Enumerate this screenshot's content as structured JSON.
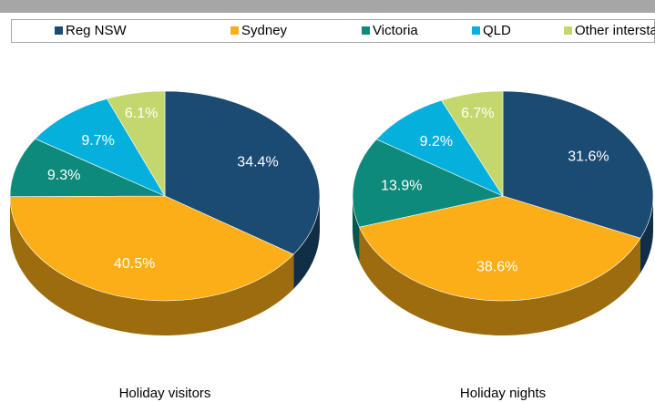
{
  "chart_data": [
    {
      "type": "pie",
      "title": "Holiday visitors",
      "categories": [
        "Reg NSW",
        "Sydney",
        "Victoria",
        "QLD",
        "Other interstate"
      ],
      "values": [
        34.4,
        40.5,
        9.3,
        9.7,
        6.1
      ],
      "value_labels": [
        "34.4%",
        "40.5%",
        "9.3%",
        "9.7%",
        "6.1%"
      ],
      "colors": [
        "#1b4a72",
        "#fbae17",
        "#0e8a7b",
        "#05b1dc",
        "#c4d76d"
      ]
    },
    {
      "type": "pie",
      "title": "Holiday nights",
      "categories": [
        "Reg NSW",
        "Sydney",
        "Victoria",
        "QLD",
        "Other interstate"
      ],
      "values": [
        31.6,
        38.6,
        13.9,
        9.2,
        6.7
      ],
      "value_labels": [
        "31.6%",
        "38.6%",
        "13.9%",
        "9.2%",
        "6.7%"
      ],
      "colors": [
        "#1b4a72",
        "#fbae17",
        "#0e8a7b",
        "#05b1dc",
        "#c4d76d"
      ]
    }
  ]
}
